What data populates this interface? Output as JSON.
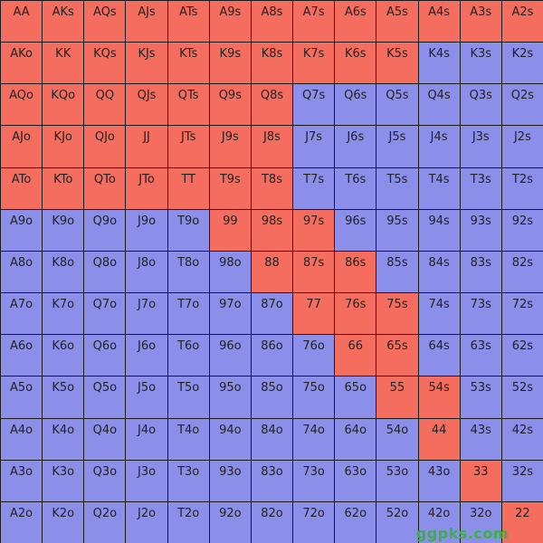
{
  "grid": {
    "rows": [
      {
        "labels": [
          "AA",
          "AKs",
          "AQs",
          "AJs",
          "ATs",
          "A9s",
          "A8s",
          "A7s",
          "A6s",
          "A5s",
          "A4s",
          "A3s",
          "A2s"
        ],
        "colors": [
          "#f46d5e",
          "#f46d5e",
          "#f46d5e",
          "#f46d5e",
          "#f46d5e",
          "#f46d5e",
          "#f46d5e",
          "#f46d5e",
          "#f46d5e",
          "#f46d5e",
          "#f46d5e",
          "#f46d5e",
          "#f46d5e"
        ]
      },
      {
        "labels": [
          "AKo",
          "KK",
          "KQs",
          "KJs",
          "KTs",
          "K9s",
          "K8s",
          "K7s",
          "K6s",
          "K5s",
          "K4s",
          "K3s",
          "K2s"
        ],
        "colors": [
          "#f46d5e",
          "#f46d5e",
          "#f46d5e",
          "#f46d5e",
          "#f46d5e",
          "#f46d5e",
          "#f46d5e",
          "#f46d5e",
          "#f46d5e",
          "#f46d5e",
          "#8b8fe9",
          "#8b8fe9",
          "#8b8fe9"
        ]
      },
      {
        "labels": [
          "AQo",
          "KQo",
          "QQ",
          "QJs",
          "QTs",
          "Q9s",
          "Q8s",
          "Q7s",
          "Q6s",
          "Q5s",
          "Q4s",
          "Q3s",
          "Q2s"
        ],
        "colors": [
          "#f46d5e",
          "#f46d5e",
          "#f46d5e",
          "#f46d5e",
          "#f46d5e",
          "#f46d5e",
          "#f46d5e",
          "#8b8fe9",
          "#8b8fe9",
          "#8b8fe9",
          "#8b8fe9",
          "#8b8fe9",
          "#8b8fe9"
        ]
      },
      {
        "labels": [
          "AJo",
          "KJo",
          "QJo",
          "JJ",
          "JTs",
          "J9s",
          "J8s",
          "J7s",
          "J6s",
          "J5s",
          "J4s",
          "J3s",
          "J2s"
        ],
        "colors": [
          "#f46d5e",
          "#f46d5e",
          "#f46d5e",
          "#f46d5e",
          "#f46d5e",
          "#f46d5e",
          "#f46d5e",
          "#8b8fe9",
          "#8b8fe9",
          "#8b8fe9",
          "#8b8fe9",
          "#8b8fe9",
          "#8b8fe9"
        ]
      },
      {
        "labels": [
          "ATo",
          "KTo",
          "QTo",
          "JTo",
          "TT",
          "T9s",
          "T8s",
          "T7s",
          "T6s",
          "T5s",
          "T4s",
          "T3s",
          "T2s"
        ],
        "colors": [
          "#f46d5e",
          "#f46d5e",
          "#f46d5e",
          "#f46d5e",
          "#f46d5e",
          "#f46d5e",
          "#f46d5e",
          "#8b8fe9",
          "#8b8fe9",
          "#8b8fe9",
          "#8b8fe9",
          "#8b8fe9",
          "#8b8fe9"
        ]
      },
      {
        "labels": [
          "A9o",
          "K9o",
          "Q9o",
          "J9o",
          "T9o",
          "99",
          "98s",
          "97s",
          "96s",
          "95s",
          "94s",
          "93s",
          "92s"
        ],
        "colors": [
          "#8b8fe9",
          "#8b8fe9",
          "#8b8fe9",
          "#8b8fe9",
          "#8b8fe9",
          "#f46d5e",
          "#f46d5e",
          "#f46d5e",
          "#8b8fe9",
          "#8b8fe9",
          "#8b8fe9",
          "#8b8fe9",
          "#8b8fe9"
        ]
      },
      {
        "labels": [
          "A8o",
          "K8o",
          "Q8o",
          "J8o",
          "T8o",
          "98o",
          "88",
          "87s",
          "86s",
          "85s",
          "84s",
          "83s",
          "82s"
        ],
        "colors": [
          "#8b8fe9",
          "#8b8fe9",
          "#8b8fe9",
          "#8b8fe9",
          "#8b8fe9",
          "#8b8fe9",
          "#f46d5e",
          "#f46d5e",
          "#f46d5e",
          "#8b8fe9",
          "#8b8fe9",
          "#8b8fe9",
          "#8b8fe9"
        ]
      },
      {
        "labels": [
          "A7o",
          "K7o",
          "Q7o",
          "J7o",
          "T7o",
          "97o",
          "87o",
          "77",
          "76s",
          "75s",
          "74s",
          "73s",
          "72s"
        ],
        "colors": [
          "#8b8fe9",
          "#8b8fe9",
          "#8b8fe9",
          "#8b8fe9",
          "#8b8fe9",
          "#8b8fe9",
          "#8b8fe9",
          "#f46d5e",
          "#f46d5e",
          "#f46d5e",
          "#8b8fe9",
          "#8b8fe9",
          "#8b8fe9"
        ]
      },
      {
        "labels": [
          "A6o",
          "K6o",
          "Q6o",
          "J6o",
          "T6o",
          "96o",
          "86o",
          "76o",
          "66",
          "65s",
          "64s",
          "63s",
          "62s"
        ],
        "colors": [
          "#8b8fe9",
          "#8b8fe9",
          "#8b8fe9",
          "#8b8fe9",
          "#8b8fe9",
          "#8b8fe9",
          "#8b8fe9",
          "#8b8fe9",
          "#f46d5e",
          "#f46d5e",
          "#8b8fe9",
          "#8b8fe9",
          "#8b8fe9"
        ]
      },
      {
        "labels": [
          "A5o",
          "K5o",
          "Q5o",
          "J5o",
          "T5o",
          "95o",
          "85o",
          "75o",
          "65o",
          "55",
          "54s",
          "53s",
          "52s"
        ],
        "colors": [
          "#8b8fe9",
          "#8b8fe9",
          "#8b8fe9",
          "#8b8fe9",
          "#8b8fe9",
          "#8b8fe9",
          "#8b8fe9",
          "#8b8fe9",
          "#8b8fe9",
          "#f46d5e",
          "#f46d5e",
          "#8b8fe9",
          "#8b8fe9"
        ]
      },
      {
        "labels": [
          "A4o",
          "K4o",
          "Q4o",
          "J4o",
          "T4o",
          "94o",
          "84o",
          "74o",
          "64o",
          "54o",
          "44",
          "43s",
          "42s"
        ],
        "colors": [
          "#8b8fe9",
          "#8b8fe9",
          "#8b8fe9",
          "#8b8fe9",
          "#8b8fe9",
          "#8b8fe9",
          "#8b8fe9",
          "#8b8fe9",
          "#8b8fe9",
          "#8b8fe9",
          "#f46d5e",
          "#8b8fe9",
          "#8b8fe9"
        ]
      },
      {
        "labels": [
          "A3o",
          "K3o",
          "Q3o",
          "J3o",
          "T3o",
          "93o",
          "83o",
          "73o",
          "63o",
          "53o",
          "43o",
          "33",
          "32s"
        ],
        "colors": [
          "#8b8fe9",
          "#8b8fe9",
          "#8b8fe9",
          "#8b8fe9",
          "#8b8fe9",
          "#8b8fe9",
          "#8b8fe9",
          "#8b8fe9",
          "#8b8fe9",
          "#8b8fe9",
          "#8b8fe9",
          "#f46d5e",
          "#8b8fe9"
        ]
      },
      {
        "labels": [
          "A2o",
          "K2o",
          "Q2o",
          "J2o",
          "T2o",
          "92o",
          "82o",
          "72o",
          "62o",
          "52o",
          "42o",
          "32o",
          "22"
        ],
        "colors": [
          "#8b8fe9",
          "#8b8fe9",
          "#8b8fe9",
          "#8b8fe9",
          "#8b8fe9",
          "#8b8fe9",
          "#8b8fe9",
          "#8b8fe9",
          "#8b8fe9",
          "#8b8fe9",
          "#8b8fe9",
          "#8b8fe9",
          "#f46d5e"
        ]
      }
    ]
  },
  "watermark": "ggpks.com"
}
